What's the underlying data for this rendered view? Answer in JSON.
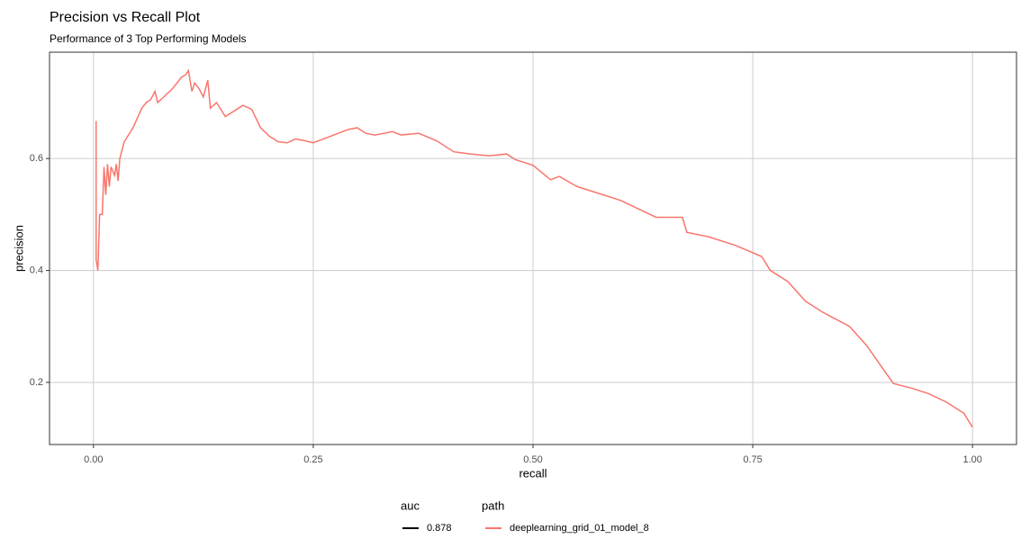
{
  "chart_data": {
    "type": "line",
    "title": "Precision vs Recall Plot",
    "subtitle": "Performance of 3 Top Performing Models",
    "x_label": "recall",
    "y_label": "precision",
    "xlim": [
      -0.05,
      1.05
    ],
    "ylim": [
      0.089,
      0.79
    ],
    "xticks": [
      {
        "value": 0,
        "label": "0.00"
      },
      {
        "value": 0.25,
        "label": "0.25"
      },
      {
        "value": 0.5,
        "label": "0.50"
      },
      {
        "value": 0.75,
        "label": "0.75"
      },
      {
        "value": 1,
        "label": "1.00"
      }
    ],
    "yticks": [
      0.2,
      0.4,
      0.6
    ],
    "grid": true,
    "x": [
      0.003,
      0.003,
      0.005,
      0.007,
      0.01,
      0.012,
      0.014,
      0.016,
      0.018,
      0.02,
      0.024,
      0.026,
      0.028,
      0.03,
      0.035,
      0.045,
      0.055,
      0.06,
      0.065,
      0.07,
      0.073,
      0.08,
      0.09,
      0.1,
      0.105,
      0.108,
      0.112,
      0.115,
      0.12,
      0.125,
      0.13,
      0.133,
      0.14,
      0.15,
      0.16,
      0.17,
      0.18,
      0.19,
      0.2,
      0.21,
      0.22,
      0.23,
      0.24,
      0.25,
      0.27,
      0.29,
      0.3,
      0.31,
      0.32,
      0.34,
      0.35,
      0.37,
      0.39,
      0.41,
      0.43,
      0.45,
      0.47,
      0.48,
      0.5,
      0.51,
      0.52,
      0.53,
      0.55,
      0.57,
      0.6,
      0.62,
      0.64,
      0.67,
      0.675,
      0.7,
      0.73,
      0.76,
      0.77,
      0.79,
      0.81,
      0.83,
      0.86,
      0.88,
      0.9,
      0.91,
      0.93,
      0.95,
      0.97,
      0.99,
      1.0
    ],
    "series": [
      {
        "name": "deeplearning_grid_01_model_8",
        "color": "#f8766d",
        "values": [
          0.667,
          0.42,
          0.4,
          0.5,
          0.5,
          0.585,
          0.535,
          0.59,
          0.55,
          0.585,
          0.57,
          0.59,
          0.56,
          0.6,
          0.63,
          0.655,
          0.69,
          0.7,
          0.705,
          0.72,
          0.7,
          0.71,
          0.725,
          0.745,
          0.75,
          0.757,
          0.72,
          0.735,
          0.725,
          0.71,
          0.74,
          0.69,
          0.7,
          0.675,
          0.685,
          0.695,
          0.688,
          0.655,
          0.64,
          0.63,
          0.628,
          0.635,
          0.632,
          0.628,
          0.64,
          0.652,
          0.655,
          0.645,
          0.642,
          0.648,
          0.642,
          0.645,
          0.632,
          0.612,
          0.608,
          0.605,
          0.608,
          0.598,
          0.588,
          0.575,
          0.562,
          0.568,
          0.55,
          0.54,
          0.525,
          0.51,
          0.495,
          0.495,
          0.468,
          0.46,
          0.445,
          0.425,
          0.4,
          0.38,
          0.345,
          0.325,
          0.3,
          0.265,
          0.22,
          0.198,
          0.19,
          0.18,
          0.165,
          0.145,
          0.12
        ]
      }
    ],
    "legend_title": "path",
    "auc_legend": {
      "title": "auc",
      "label": "0.878",
      "color": "#000000"
    }
  }
}
